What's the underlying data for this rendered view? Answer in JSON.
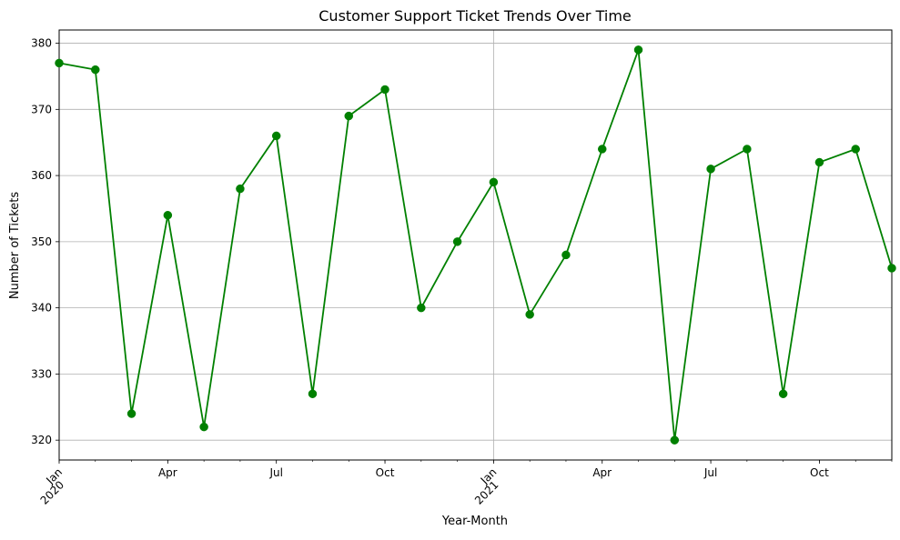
{
  "chart_data": {
    "type": "line",
    "title": "Customer Support Ticket Trends Over Time",
    "xlabel": "Year-Month",
    "ylabel": "Number of Tickets",
    "x": [
      "2020-01",
      "2020-02",
      "2020-03",
      "2020-04",
      "2020-05",
      "2020-06",
      "2020-07",
      "2020-08",
      "2020-09",
      "2020-10",
      "2020-11",
      "2020-12",
      "2021-01",
      "2021-02",
      "2021-03",
      "2021-04",
      "2021-05",
      "2021-06",
      "2021-07",
      "2021-08",
      "2021-09",
      "2021-10",
      "2021-11",
      "2021-12"
    ],
    "series": [
      {
        "values": [
          377,
          376,
          324,
          354,
          322,
          358,
          366,
          327,
          369,
          373,
          340,
          350,
          359,
          339,
          348,
          364,
          379,
          320,
          361,
          364,
          327,
          362,
          364,
          346
        ],
        "color": "#008000"
      }
    ],
    "ylim": [
      317,
      382
    ],
    "yticks": [
      320,
      330,
      340,
      350,
      360,
      370,
      380
    ],
    "xticks": [
      {
        "x": "2020-01",
        "label": "Jan",
        "year": "2020"
      },
      {
        "x": "2020-04",
        "label": "Apr"
      },
      {
        "x": "2020-07",
        "label": "Jul"
      },
      {
        "x": "2020-10",
        "label": "Oct"
      },
      {
        "x": "2021-01",
        "label": "Jan",
        "year": "2021"
      },
      {
        "x": "2021-04",
        "label": "Apr"
      },
      {
        "x": "2021-07",
        "label": "Jul"
      },
      {
        "x": "2021-10",
        "label": "Oct"
      }
    ],
    "grid": true
  }
}
